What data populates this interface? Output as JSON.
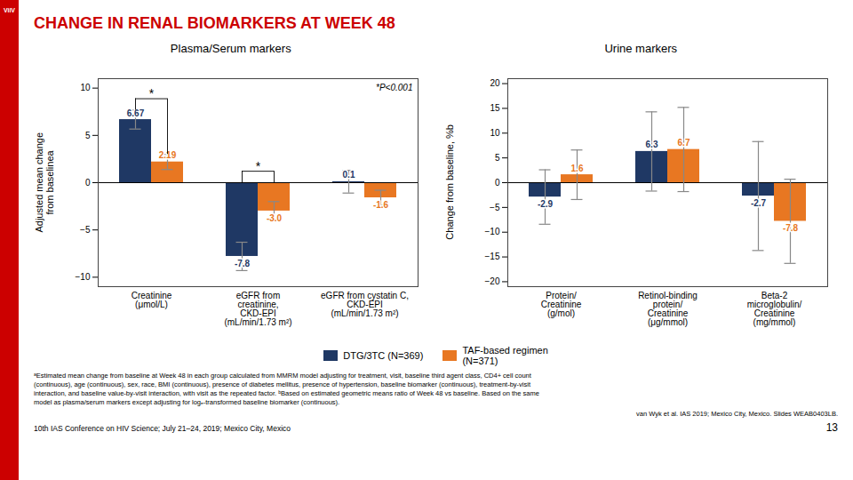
{
  "title": "CHANGE IN RENAL BIOMARKERS AT WEEK 48",
  "logo": "ViiV",
  "chart_data": [
    {
      "type": "bar",
      "title": "Plasma/Serum markers",
      "categories": [
        "Creatinine\n(μmol/L)",
        "eGFR from\ncreatinine,\nCKD-EPI\n(mL/min/1.73 m²)",
        "eGFR from cystatin C,\nCKD-EPI\n(mL/min/1.73 m²)"
      ],
      "series": [
        {
          "name": "DTG/3TC (N=369)",
          "color": "#1f3864",
          "values": [
            6.67,
            -7.8,
            0.1
          ],
          "error_minus": [
            1.0,
            1.5,
            1.2
          ],
          "error_plus": [
            1.0,
            1.5,
            1.2
          ]
        },
        {
          "name": "TAF-based regimen\n(N=371)",
          "color": "#e87722",
          "values": [
            2.19,
            -3.0,
            -1.6
          ],
          "value_labels": [
            "2.19",
            "-3.0",
            "-1.6"
          ],
          "error_minus": [
            0.8,
            1.0,
            0.8
          ],
          "error_plus": [
            0.8,
            1.0,
            0.8
          ]
        }
      ],
      "ylim": [
        -11,
        11
      ],
      "yticks": [
        -10,
        -5,
        0,
        5,
        10
      ],
      "ylabel": "Adjusted mean change\nfrom baselinea",
      "grid": false,
      "data_labels": true,
      "legend": "bottom",
      "significance": {
        "label": "*",
        "categories": [
          "Creatinine\n(μmol/L)",
          "eGFR from\ncreatinine,\nCKD-EPI\n(mL/min/1.73 m²)"
        ]
      },
      "annotations": [
        {
          "text": "*P<0.001"
        }
      ]
    },
    {
      "type": "bar",
      "title": "Urine markers",
      "categories": [
        "Protein/\nCreatinine\n(g/mol)",
        "Retinol-binding\nprotein/\nCreatinine\n(μg/mmol)",
        "Beta-2\nmicroglobulin/\nCreatinine\n(mg/mmol)"
      ],
      "series": [
        {
          "name": "DTG/3TC (N=369)",
          "color": "#1f3864",
          "values": [
            -2.9,
            6.3,
            -2.7
          ],
          "error_minus": [
            5.5,
            8.0,
            11.0
          ],
          "error_plus": [
            5.5,
            8.0,
            11.0
          ]
        },
        {
          "name": "TAF-based regimen\n(N=371)",
          "color": "#e87722",
          "values": [
            1.6,
            6.7,
            -7.8
          ],
          "error_minus": [
            5.0,
            8.5,
            8.5
          ],
          "error_plus": [
            5.0,
            8.5,
            8.5
          ]
        }
      ],
      "ylim": [
        -21,
        21
      ],
      "yticks": [
        -20,
        -15,
        -10,
        -5,
        0,
        5,
        10,
        15,
        20
      ],
      "ylabel": "Change from baseline, %b",
      "grid": false,
      "data_labels": true
    }
  ],
  "footnotes": [
    "ᵃEstimated mean change from baseline at Week 48 in each group calculated from MMRM model adjusting for treatment, visit, baseline third agent class, CD4+ cell count",
    "(continuous), age (continuous), sex, race, BMI (continuous), presence of diabetes mellitus, presence of hypertension, baseline biomarker (continuous), treatment-by-visit",
    "interaction, and baseline value-by-visit interaction, with visit as the repeated factor. ᵇBased on estimated geometric means ratio of Week 48 vs baseline. Based on the same",
    "model as plasma/serum markers except adjusting for logₑ-transformed baseline biomarker (continuous)."
  ],
  "citation": "van Wyk et al. IAS 2019; Mexico City, Mexico. Slides WEAB0403LB.",
  "conference": "10th IAS Conference on HIV Science; July 21–24, 2019; Mexico City, Mexico",
  "slide_number": "13"
}
